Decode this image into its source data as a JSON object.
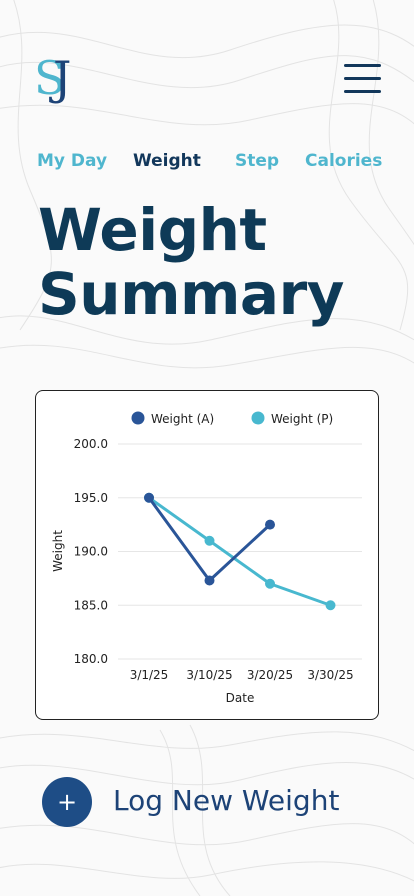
{
  "logo": {
    "first": "S",
    "second": "J"
  },
  "nav": {
    "tabs": [
      {
        "label": "My Day",
        "active": false
      },
      {
        "label": "Weight",
        "active": true
      },
      {
        "label": "Step",
        "active": false
      },
      {
        "label": "Calories",
        "active": false
      }
    ]
  },
  "page": {
    "title_line1": "Weight",
    "title_line2": "Summary"
  },
  "chart_data": {
    "type": "line",
    "xlabel": "Date",
    "ylabel": "Weight",
    "categories": [
      "3/1/25",
      "3/10/25",
      "3/20/25",
      "3/30/25"
    ],
    "ylim": [
      180,
      200
    ],
    "yticks": [
      "200.0",
      "195.0",
      "190.0",
      "185.0",
      "180.0"
    ],
    "grid": true,
    "legend_position": "top",
    "series": [
      {
        "name": "Weight (A)",
        "color": "#2a5598",
        "points": [
          [
            0,
            195.0
          ],
          [
            1,
            187.3
          ],
          [
            2,
            192.5
          ]
        ]
      },
      {
        "name": "Weight (P)",
        "color": "#48b8cf",
        "points": [
          [
            0,
            195.0
          ],
          [
            1,
            191.0
          ],
          [
            2,
            187.0
          ],
          [
            3,
            185.0
          ]
        ]
      }
    ]
  },
  "actions": {
    "log_label": "Log New Weight",
    "log_icon": "plus-icon",
    "log_symbol": "+"
  },
  "colors": {
    "primary": "#12375b",
    "accent": "#4fb6ce",
    "button": "#1e4d86"
  }
}
